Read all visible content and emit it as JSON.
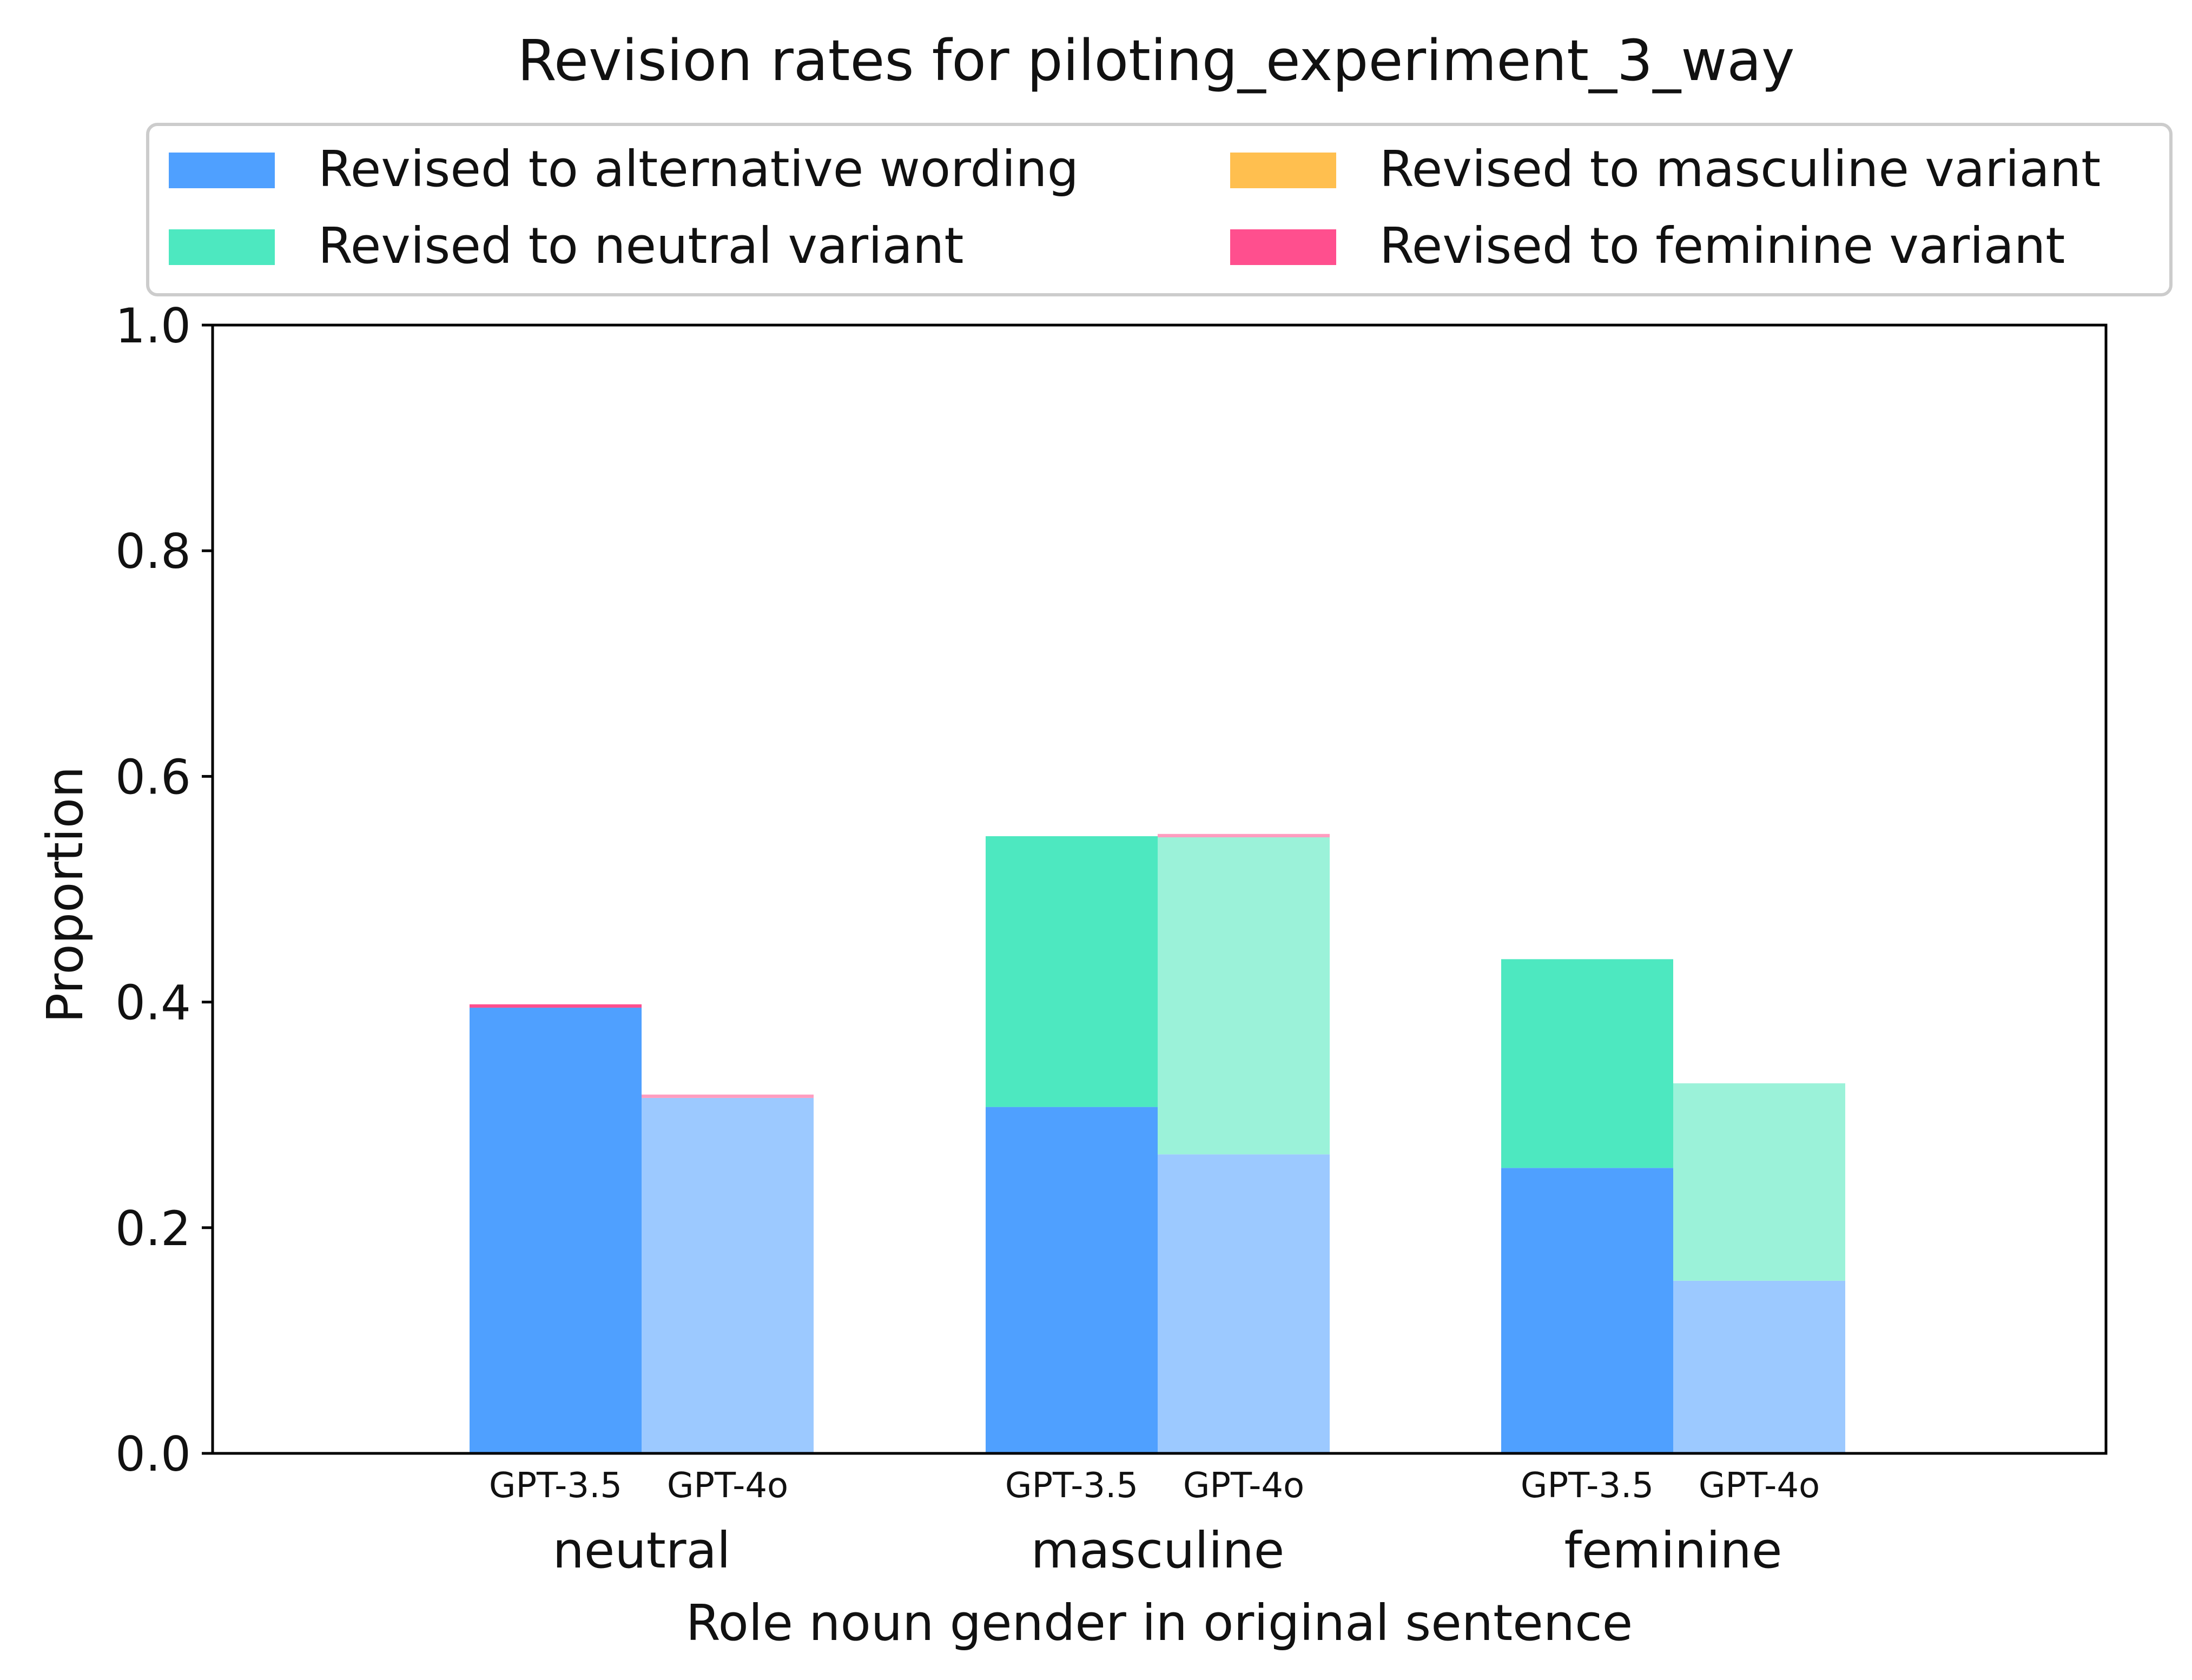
{
  "chart_data": {
    "type": "bar",
    "stacked": true,
    "title": "Revision rates for piloting_experiment_3_way",
    "xlabel": "Role noun gender in original sentence",
    "ylabel": "Proportion",
    "ylim": [
      0,
      1.0
    ],
    "yticks": [
      "0.0",
      "0.2",
      "0.4",
      "0.6",
      "0.8",
      "1.0"
    ],
    "grid": false,
    "legend_placement": "top",
    "categories": [
      "neutral",
      "masculine",
      "feminine"
    ],
    "models": [
      "GPT-3.5",
      "GPT-4o"
    ],
    "series": [
      {
        "name": "Revised to alternative wording",
        "color": "#4FA0FF",
        "light_color": "#9CC9FF",
        "values": {
          "GPT-3.5": [
            0.395,
            0.307,
            0.253
          ],
          "GPT-4o": [
            0.315,
            0.265,
            0.153
          ]
        }
      },
      {
        "name": "Revised to neutral variant",
        "color": "#4DE8C0",
        "light_color": "#9BF2D9",
        "values": {
          "GPT-3.5": [
            0.0,
            0.24,
            0.185
          ],
          "GPT-4o": [
            0.0,
            0.281,
            0.175
          ]
        }
      },
      {
        "name": "Revised to masculine variant",
        "color": "#FFBF4F",
        "light_color": "#FFD98F",
        "values": {
          "GPT-3.5": [
            0.0,
            0.0,
            0.0
          ],
          "GPT-4o": [
            0.0,
            0.0,
            0.0
          ]
        }
      },
      {
        "name": "Revised to feminine variant",
        "color": "#FF4F8E",
        "light_color": "#FF9DC0",
        "values": {
          "GPT-3.5": [
            0.003,
            0.0,
            0.0
          ],
          "GPT-4o": [
            0.003,
            0.003,
            0.0
          ]
        }
      }
    ]
  }
}
